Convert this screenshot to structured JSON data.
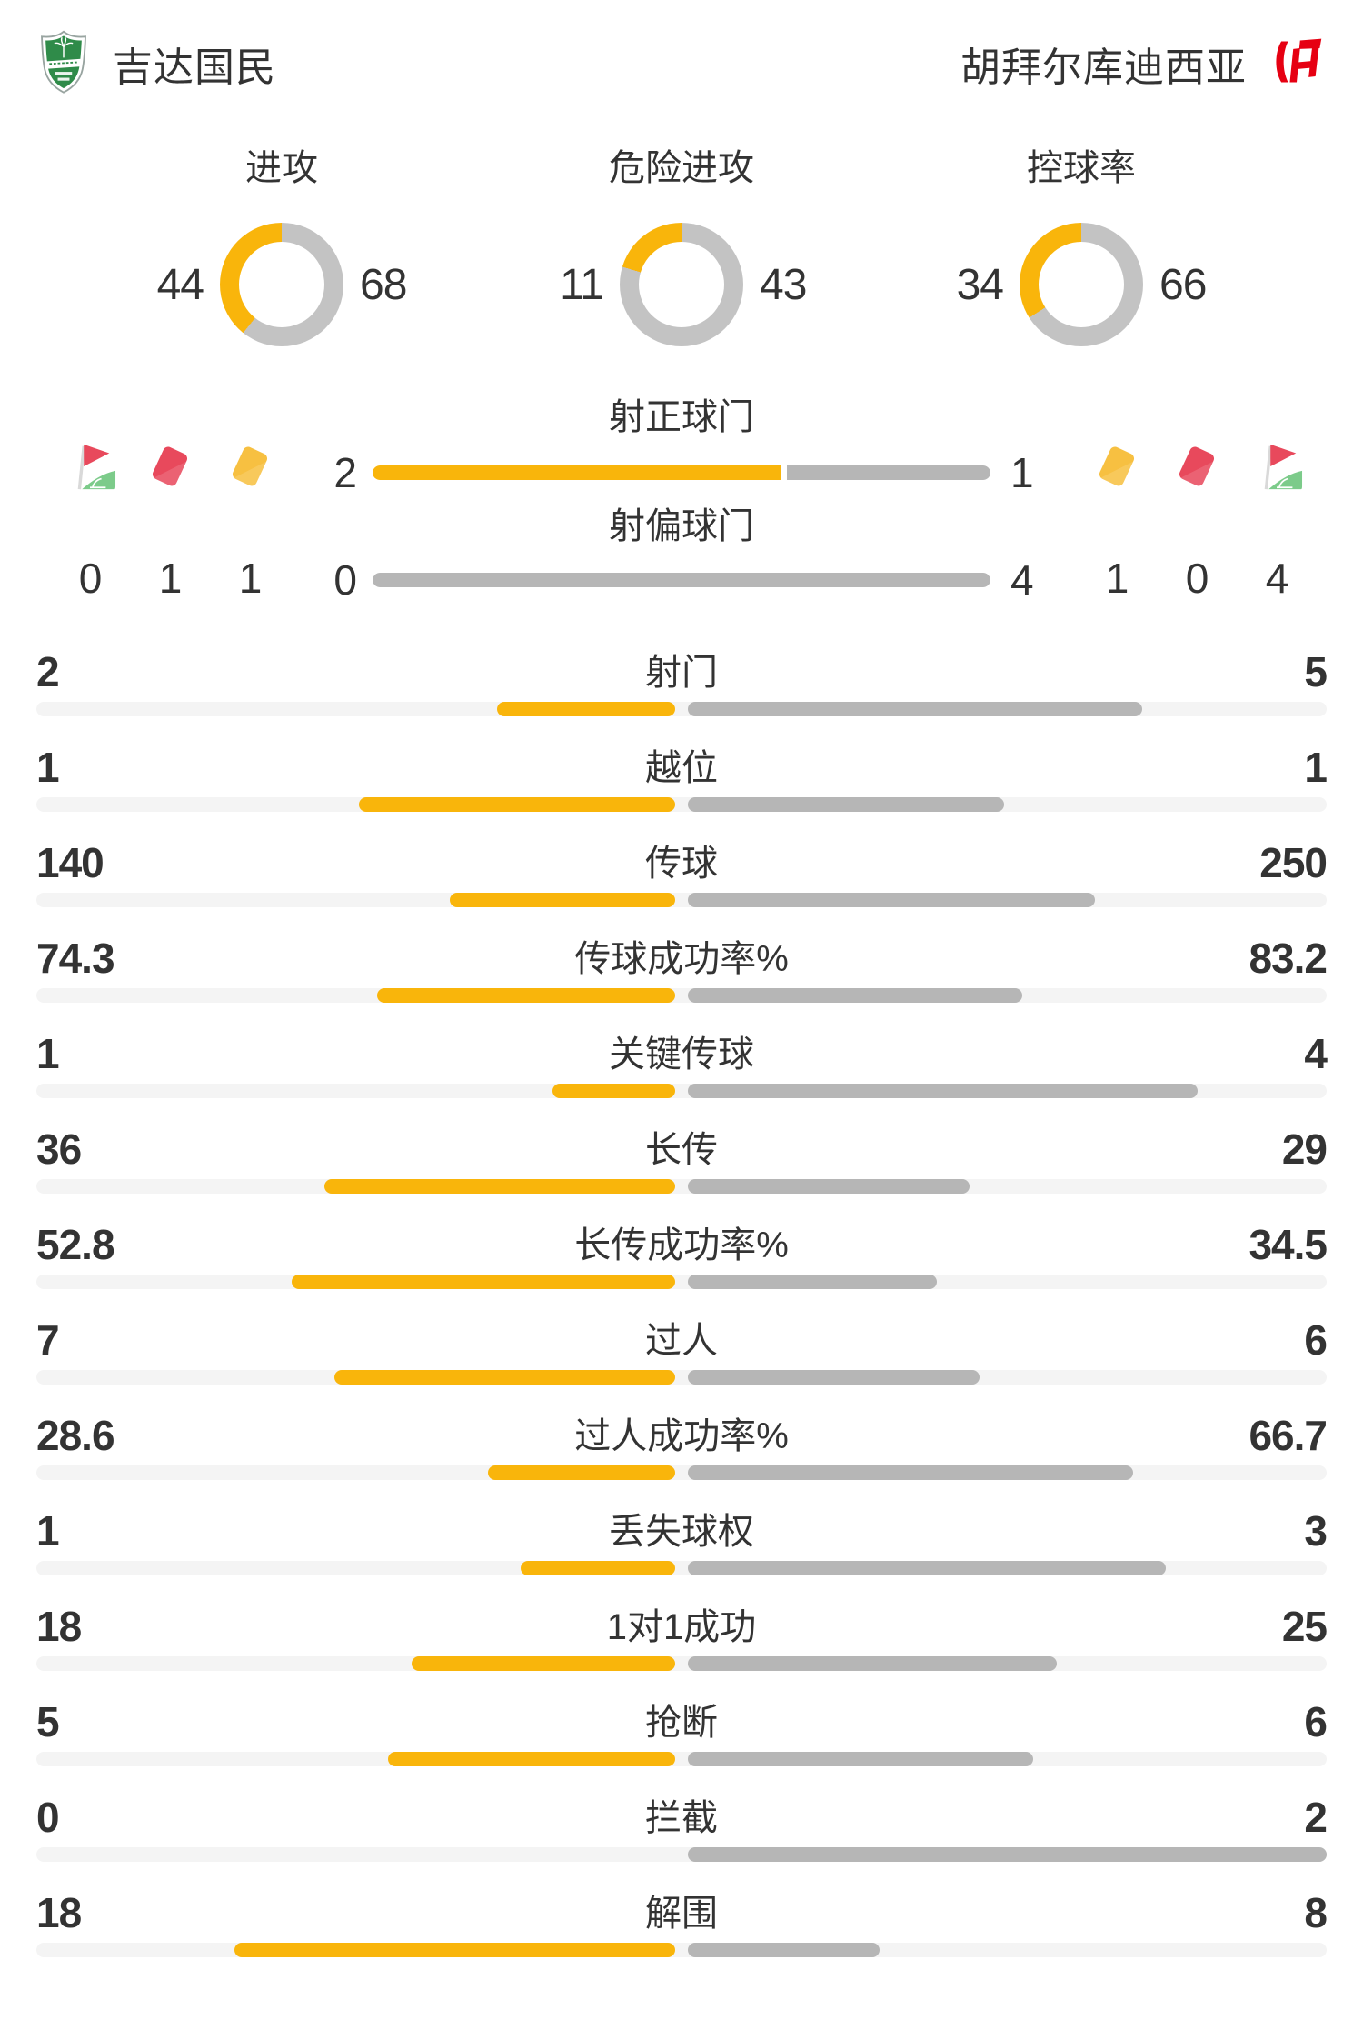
{
  "teams": {
    "home": {
      "name": "吉达国民",
      "logo": "home-shield-logo"
    },
    "away": {
      "name": "胡拜尔库迪西亚",
      "logo": "away-monogram-logo"
    }
  },
  "donuts": [
    {
      "label": "进攻",
      "home": 44,
      "away": 68
    },
    {
      "label": "危险进攻",
      "home": 11,
      "away": 43
    },
    {
      "label": "控球率",
      "home": 34,
      "away": 66
    }
  ],
  "shots": {
    "on_target": {
      "label": "射正球门",
      "home": 2,
      "away": 1
    },
    "off_target": {
      "label": "射偏球门",
      "home": 0,
      "away": 4
    }
  },
  "discipline": {
    "home": [
      {
        "icon": "corner-flag-icon",
        "value": 0
      },
      {
        "icon": "red-card-icon",
        "value": 1
      },
      {
        "icon": "yellow-card-icon",
        "value": 1
      }
    ],
    "away": [
      {
        "icon": "yellow-card-icon",
        "value": 1
      },
      {
        "icon": "red-card-icon",
        "value": 0
      },
      {
        "icon": "corner-flag-icon",
        "value": 4
      }
    ]
  },
  "stats": [
    {
      "label": "射门",
      "home": 2,
      "away": 5
    },
    {
      "label": "越位",
      "home": 1,
      "away": 1
    },
    {
      "label": "传球",
      "home": 140,
      "away": 250
    },
    {
      "label": "传球成功率%",
      "home": 74.3,
      "away": 83.2
    },
    {
      "label": "关键传球",
      "home": 1,
      "away": 4
    },
    {
      "label": "长传",
      "home": 36,
      "away": 29
    },
    {
      "label": "长传成功率%",
      "home": 52.8,
      "away": 34.5
    },
    {
      "label": "过人",
      "home": 7,
      "away": 6
    },
    {
      "label": "过人成功率%",
      "home": 28.6,
      "away": 66.7
    },
    {
      "label": "丢失球权",
      "home": 1,
      "away": 3
    },
    {
      "label": "1对1成功",
      "home": 18,
      "away": 25
    },
    {
      "label": "抢断",
      "home": 5,
      "away": 6
    },
    {
      "label": "拦截",
      "home": 0,
      "away": 2
    },
    {
      "label": "解围",
      "home": 18,
      "away": 8
    }
  ],
  "colors": {
    "yellow": "#F9B50B",
    "bar_gray": "#B6B6B6",
    "donut_gray": "#C3C3C3",
    "track": "#F4F4F4",
    "ink": "#333333",
    "card_red": "#E8495C",
    "card_yellow": "#F7C041",
    "flag_green": "#7CCB8A",
    "logo_green": "#2F8B49",
    "logo_red": "#E60012"
  },
  "chart_data": [
    {
      "type": "pie",
      "title": "进攻",
      "series": [
        {
          "name": "吉达国民",
          "value": 44
        },
        {
          "name": "胡拜尔库迪西亚",
          "value": 68
        }
      ]
    },
    {
      "type": "pie",
      "title": "危险进攻",
      "series": [
        {
          "name": "吉达国民",
          "value": 11
        },
        {
          "name": "胡拜尔库迪西亚",
          "value": 43
        }
      ]
    },
    {
      "type": "pie",
      "title": "控球率",
      "series": [
        {
          "name": "吉达国民",
          "value": 34
        },
        {
          "name": "胡拜尔库迪西亚",
          "value": 66
        }
      ]
    },
    {
      "type": "bar",
      "title": "射门统计",
      "categories": [
        "射正球门",
        "射偏球门",
        "角球",
        "红牌",
        "黄牌"
      ],
      "series": [
        {
          "name": "吉达国民",
          "values": [
            2,
            0,
            0,
            1,
            1
          ]
        },
        {
          "name": "胡拜尔库迪西亚",
          "values": [
            1,
            4,
            4,
            0,
            1
          ]
        }
      ]
    },
    {
      "type": "bar",
      "title": "比赛数据对比",
      "categories": [
        "射门",
        "越位",
        "传球",
        "传球成功率%",
        "关键传球",
        "长传",
        "长传成功率%",
        "过人",
        "过人成功率%",
        "丢失球权",
        "1对1成功",
        "抢断",
        "拦截",
        "解围"
      ],
      "series": [
        {
          "name": "吉达国民",
          "values": [
            2,
            1,
            140,
            74.3,
            1,
            36,
            52.8,
            7,
            28.6,
            1,
            18,
            5,
            0,
            18
          ]
        },
        {
          "name": "胡拜尔库迪西亚",
          "values": [
            5,
            1,
            250,
            83.2,
            4,
            29,
            34.5,
            6,
            66.7,
            3,
            25,
            6,
            2,
            8
          ]
        }
      ],
      "legend_position": "none",
      "grid": false
    }
  ]
}
